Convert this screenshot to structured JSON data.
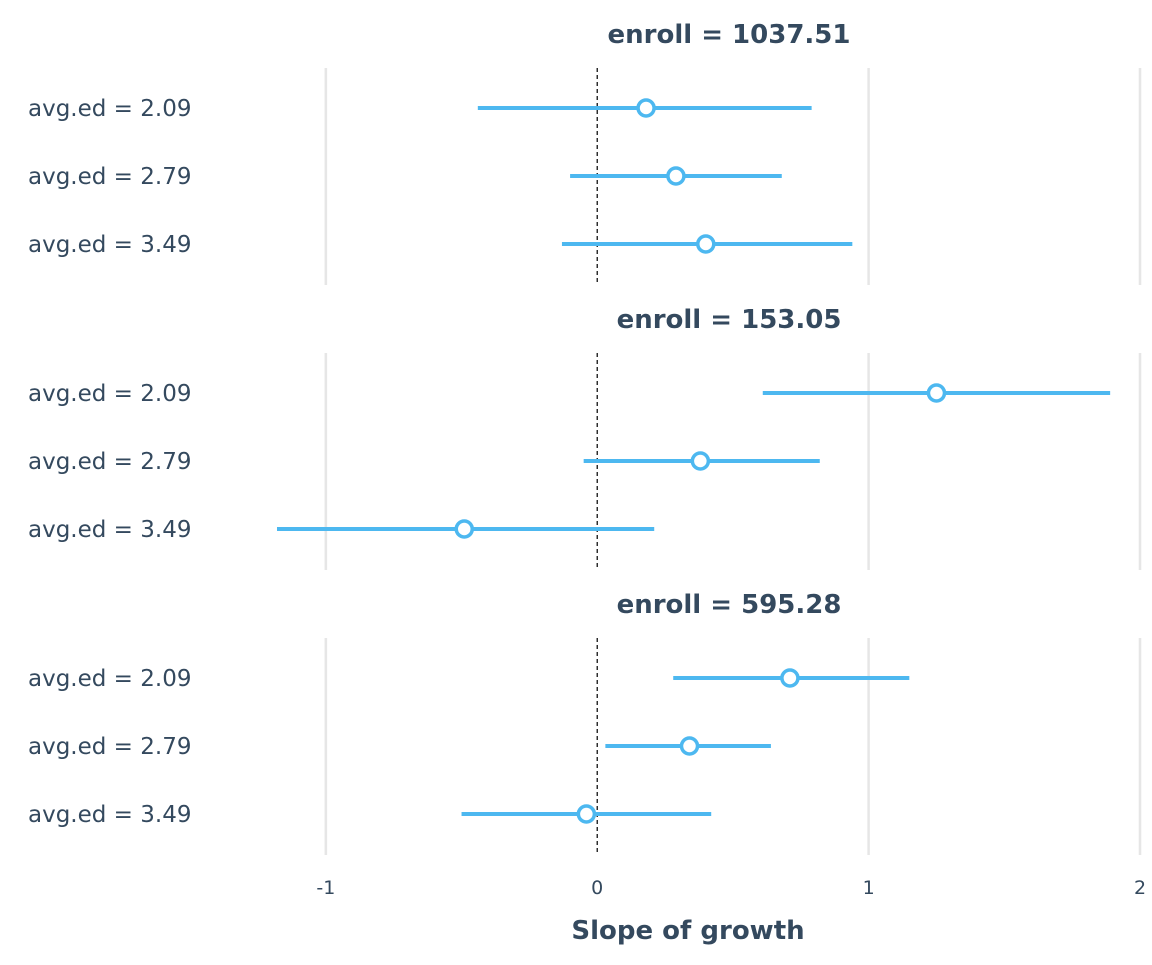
{
  "chart_data": {
    "type": "forest",
    "xlabel": "Slope of growth",
    "xlim": [
      -1.25,
      2.0
    ],
    "x_ticks": [
      -1,
      0,
      1,
      2
    ],
    "x_tick_labels": [
      "-1",
      "0",
      "1",
      "2"
    ],
    "reference_line": 0,
    "grid": true,
    "colors": {
      "estimate": "#4db8f0",
      "text": "#34495e",
      "grid": "#e6e6e6"
    },
    "panels": [
      {
        "title": "enroll = 1037.51",
        "rows": [
          {
            "label": "avg.ed = 2.09",
            "estimate": 0.18,
            "lower": -0.44,
            "upper": 0.79
          },
          {
            "label": "avg.ed = 2.79",
            "estimate": 0.29,
            "lower": -0.1,
            "upper": 0.68
          },
          {
            "label": "avg.ed = 3.49",
            "estimate": 0.4,
            "lower": -0.13,
            "upper": 0.94
          }
        ]
      },
      {
        "title": "enroll = 153.05",
        "rows": [
          {
            "label": "avg.ed = 2.09",
            "estimate": 1.25,
            "lower": 0.61,
            "upper": 1.89
          },
          {
            "label": "avg.ed = 2.79",
            "estimate": 0.38,
            "lower": -0.05,
            "upper": 0.82
          },
          {
            "label": "avg.ed = 3.49",
            "estimate": -0.49,
            "lower": -1.18,
            "upper": 0.21
          }
        ]
      },
      {
        "title": "enroll = 595.28",
        "rows": [
          {
            "label": "avg.ed = 2.09",
            "estimate": 0.71,
            "lower": 0.28,
            "upper": 1.15
          },
          {
            "label": "avg.ed = 2.79",
            "estimate": 0.34,
            "lower": 0.03,
            "upper": 0.64
          },
          {
            "label": "avg.ed = 3.49",
            "estimate": -0.04,
            "lower": -0.5,
            "upper": 0.42
          }
        ]
      }
    ]
  }
}
